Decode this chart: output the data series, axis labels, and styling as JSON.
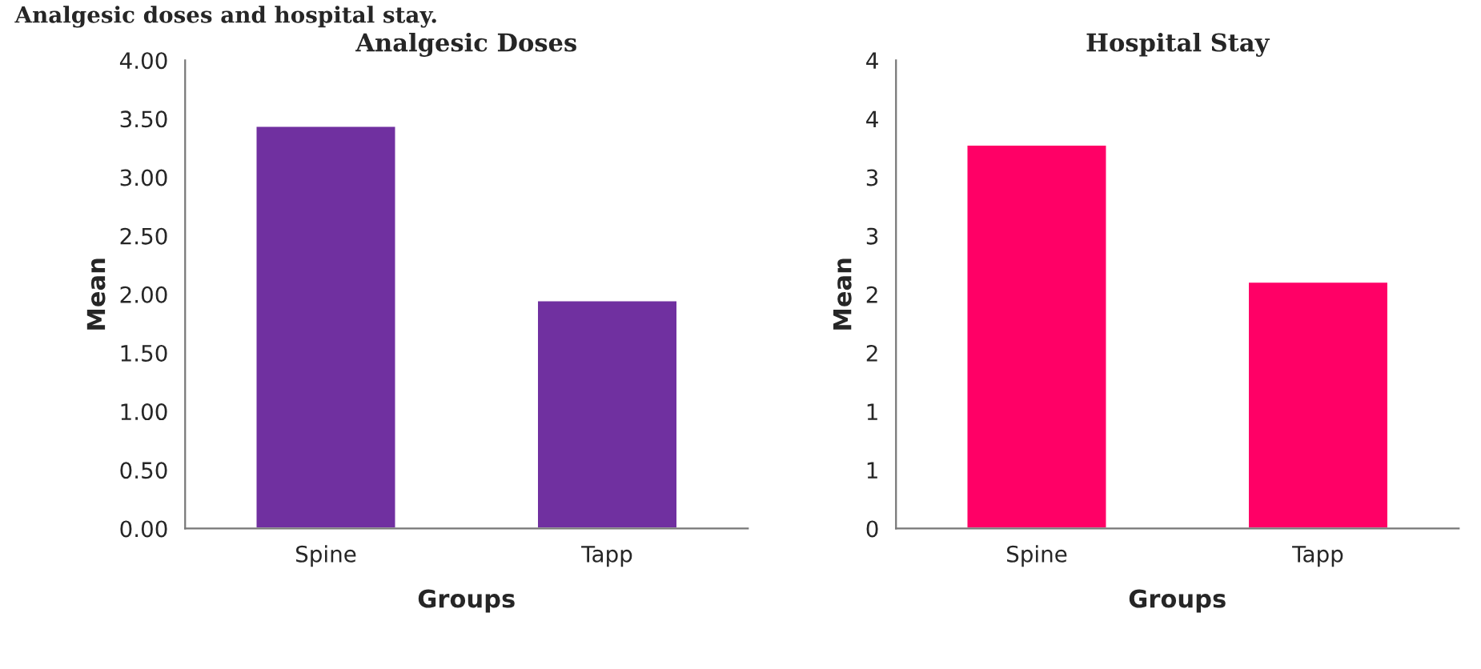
{
  "chart_data": [
    {
      "type": "bar",
      "title": "Analgesic Doses",
      "xlabel": "Groups",
      "ylabel": "Mean",
      "annotations": [
        "Analgesic doses and hospital stay."
      ],
      "categories": [
        "Spine",
        "Tapp"
      ],
      "values": [
        3.44,
        1.95
      ],
      "color": "#7030a0",
      "ylim": [
        0,
        4
      ],
      "yticks": [
        {
          "value": 0,
          "label": "0.00"
        },
        {
          "value": 0.5,
          "label": "0.50"
        },
        {
          "value": 1,
          "label": "1.00"
        },
        {
          "value": 1.5,
          "label": "1.50"
        },
        {
          "value": 2,
          "label": "2.00"
        },
        {
          "value": 2.5,
          "label": "2.50"
        },
        {
          "value": 3,
          "label": "3.00"
        },
        {
          "value": 3.5,
          "label": "3.50"
        },
        {
          "value": 4,
          "label": "4.00"
        }
      ]
    },
    {
      "type": "bar",
      "title": "Hospital Stay",
      "xlabel": "Groups",
      "ylabel": "Mean",
      "categories": [
        "Spine",
        "Tapp"
      ],
      "values": [
        3.28,
        2.11
      ],
      "color": "#ff0066",
      "ylim": [
        0,
        4
      ],
      "yticks": [
        0,
        {
          "value": 0.5,
          "label": "1"
        },
        1,
        {
          "value": 1.5,
          "label": "2"
        },
        2,
        {
          "value": 2.5,
          "label": "3"
        },
        3,
        {
          "value": 3.5,
          "label": "4"
        },
        4
      ]
    }
  ]
}
